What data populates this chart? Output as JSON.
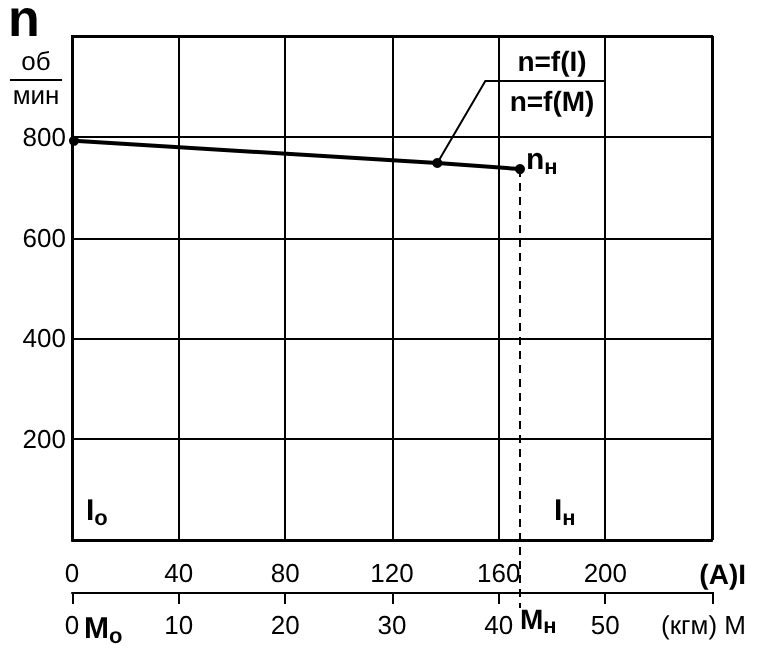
{
  "chart_data": {
    "type": "line",
    "ylabel": "n",
    "xlabel": "(A)I",
    "x2label": "(кгм) M",
    "x": [
      0.75,
      137,
      168
    ],
    "values": [
      792,
      748,
      736
    ],
    "color": "#000000",
    "xlim": [
      0,
      240
    ],
    "xticks": [
      0,
      40,
      80,
      120,
      160,
      200
    ],
    "x2lim": [
      0,
      60
    ],
    "x2ticks": [
      0,
      10,
      20,
      30,
      40,
      50,
      {
        "value": 60,
        "label": null
      }
    ],
    "ylim": [
      0,
      1000
    ],
    "yticks": [
      200,
      400,
      600,
      800
    ],
    "grid": true,
    "marker": "circle",
    "line_style": "solid",
    "ref_lines": [
      {
        "axis": "x",
        "value": 168,
        "line_style": "dashed",
        "color": "#000000"
      }
    ],
    "annotations": [
      "об",
      "мин",
      {
        "text": "n=f(I)",
        "x": 137,
        "y": 748
      },
      "n=f(M)",
      {
        "text": "n$_{н}$",
        "x": 168,
        "y": 736
      },
      "I$_{о}$",
      "I$_{н}$",
      "M$_{о}$",
      "M$_{н}$"
    ]
  }
}
